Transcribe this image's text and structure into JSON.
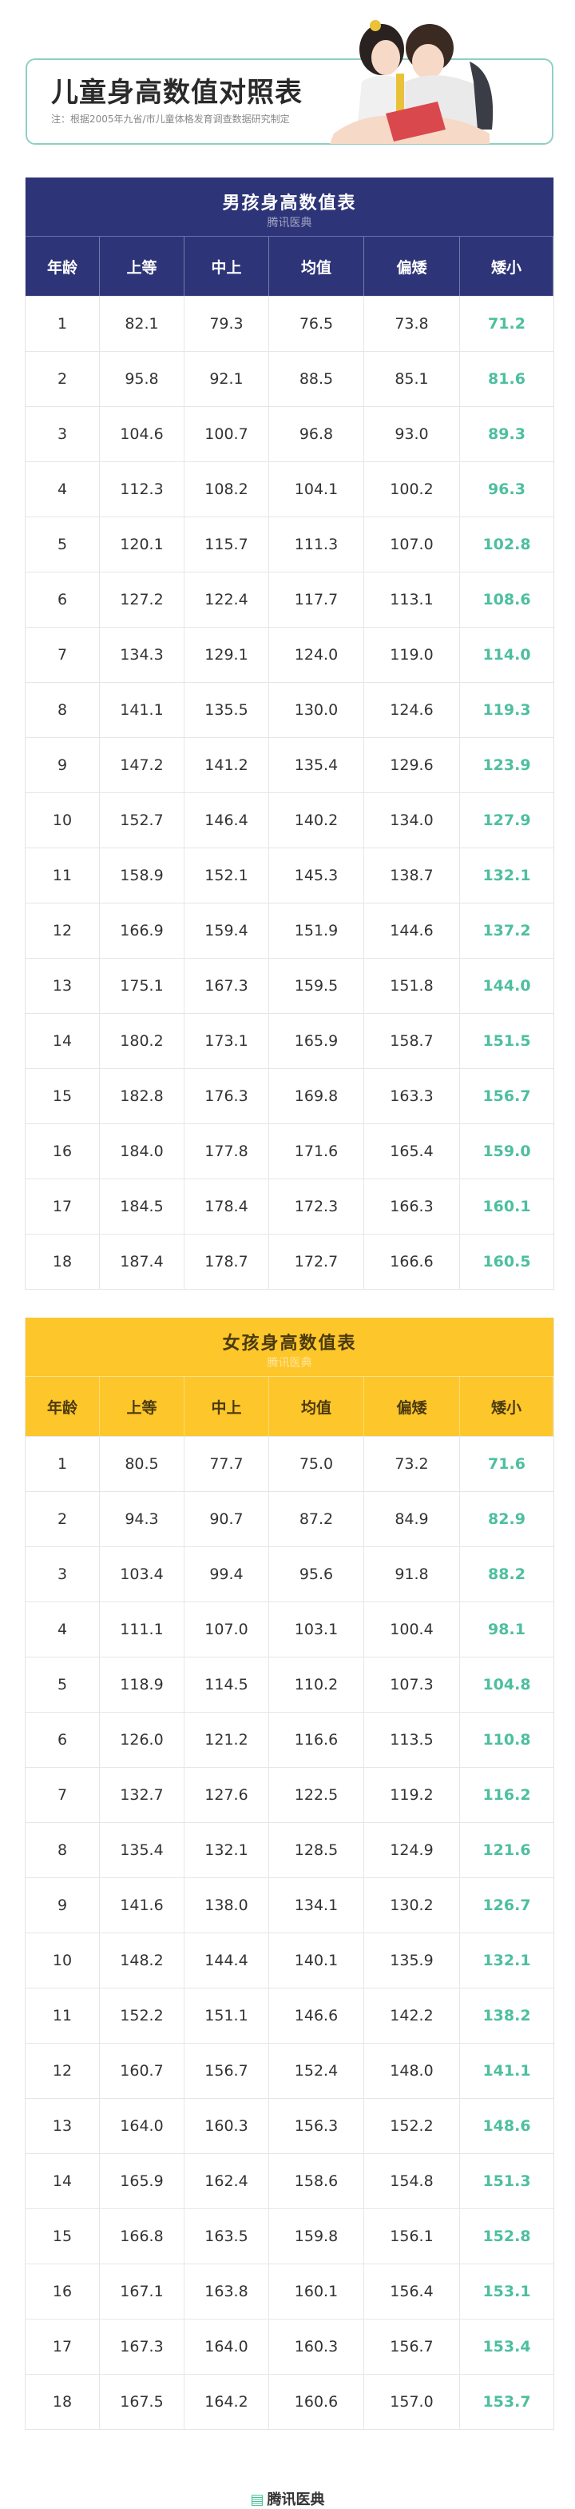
{
  "header": {
    "title": "儿童身高数值对照表",
    "note": "注：根据2005年九省/市儿童体格发育调查数据研究制定"
  },
  "watermark": "腾讯医典",
  "columns": [
    "年龄",
    "上等",
    "中上",
    "均值",
    "偏矮",
    "矮小"
  ],
  "colors": {
    "boys_header": "#2e3478",
    "girls_header": "#fdc62a",
    "short_value": "#4dbf9f",
    "brand": "#3cbf8f"
  },
  "boys": {
    "title": "男孩身高数值表",
    "rows": [
      [
        "1",
        "82.1",
        "79.3",
        "76.5",
        "73.8",
        "71.2"
      ],
      [
        "2",
        "95.8",
        "92.1",
        "88.5",
        "85.1",
        "81.6"
      ],
      [
        "3",
        "104.6",
        "100.7",
        "96.8",
        "93.0",
        "89.3"
      ],
      [
        "4",
        "112.3",
        "108.2",
        "104.1",
        "100.2",
        "96.3"
      ],
      [
        "5",
        "120.1",
        "115.7",
        "111.3",
        "107.0",
        "102.8"
      ],
      [
        "6",
        "127.2",
        "122.4",
        "117.7",
        "113.1",
        "108.6"
      ],
      [
        "7",
        "134.3",
        "129.1",
        "124.0",
        "119.0",
        "114.0"
      ],
      [
        "8",
        "141.1",
        "135.5",
        "130.0",
        "124.6",
        "119.3"
      ],
      [
        "9",
        "147.2",
        "141.2",
        "135.4",
        "129.6",
        "123.9"
      ],
      [
        "10",
        "152.7",
        "146.4",
        "140.2",
        "134.0",
        "127.9"
      ],
      [
        "11",
        "158.9",
        "152.1",
        "145.3",
        "138.7",
        "132.1"
      ],
      [
        "12",
        "166.9",
        "159.4",
        "151.9",
        "144.6",
        "137.2"
      ],
      [
        "13",
        "175.1",
        "167.3",
        "159.5",
        "151.8",
        "144.0"
      ],
      [
        "14",
        "180.2",
        "173.1",
        "165.9",
        "158.7",
        "151.5"
      ],
      [
        "15",
        "182.8",
        "176.3",
        "169.8",
        "163.3",
        "156.7"
      ],
      [
        "16",
        "184.0",
        "177.8",
        "171.6",
        "165.4",
        "159.0"
      ],
      [
        "17",
        "184.5",
        "178.4",
        "172.3",
        "166.3",
        "160.1"
      ],
      [
        "18",
        "187.4",
        "178.7",
        "172.7",
        "166.6",
        "160.5"
      ]
    ]
  },
  "girls": {
    "title": "女孩身高数值表",
    "rows": [
      [
        "1",
        "80.5",
        "77.7",
        "75.0",
        "73.2",
        "71.6"
      ],
      [
        "2",
        "94.3",
        "90.7",
        "87.2",
        "84.9",
        "82.9"
      ],
      [
        "3",
        "103.4",
        "99.4",
        "95.6",
        "91.8",
        "88.2"
      ],
      [
        "4",
        "111.1",
        "107.0",
        "103.1",
        "100.4",
        "98.1"
      ],
      [
        "5",
        "118.9",
        "114.5",
        "110.2",
        "107.3",
        "104.8"
      ],
      [
        "6",
        "126.0",
        "121.2",
        "116.6",
        "113.5",
        "110.8"
      ],
      [
        "7",
        "132.7",
        "127.6",
        "122.5",
        "119.2",
        "116.2"
      ],
      [
        "8",
        "135.4",
        "132.1",
        "128.5",
        "124.9",
        "121.6"
      ],
      [
        "9",
        "141.6",
        "138.0",
        "134.1",
        "130.2",
        "126.7"
      ],
      [
        "10",
        "148.2",
        "144.4",
        "140.1",
        "135.9",
        "132.1"
      ],
      [
        "11",
        "152.2",
        "151.1",
        "146.6",
        "142.2",
        "138.2"
      ],
      [
        "12",
        "160.7",
        "156.7",
        "152.4",
        "148.0",
        "141.1"
      ],
      [
        "13",
        "164.0",
        "160.3",
        "156.3",
        "152.2",
        "148.6"
      ],
      [
        "14",
        "165.9",
        "162.4",
        "158.6",
        "154.8",
        "151.3"
      ],
      [
        "15",
        "166.8",
        "163.5",
        "159.8",
        "156.1",
        "152.8"
      ],
      [
        "16",
        "167.1",
        "163.8",
        "160.1",
        "156.4",
        "153.1"
      ],
      [
        "17",
        "167.3",
        "164.0",
        "160.3",
        "156.7",
        "153.4"
      ],
      [
        "18",
        "167.5",
        "164.2",
        "160.6",
        "157.0",
        "153.7"
      ]
    ]
  },
  "footer": {
    "brand": "腾讯医典"
  }
}
